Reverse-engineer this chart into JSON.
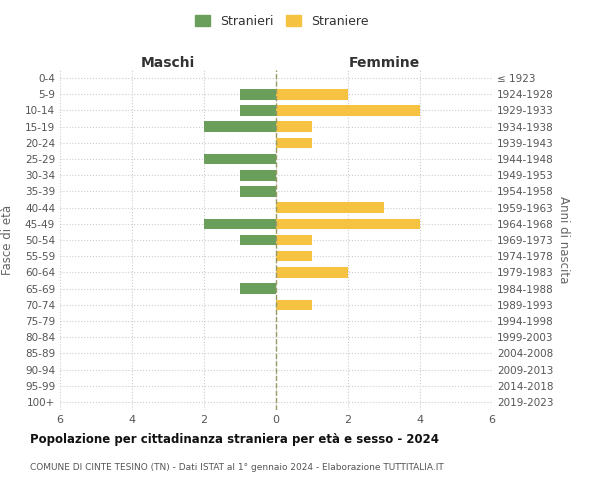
{
  "age_groups": [
    "0-4",
    "5-9",
    "10-14",
    "15-19",
    "20-24",
    "25-29",
    "30-34",
    "35-39",
    "40-44",
    "45-49",
    "50-54",
    "55-59",
    "60-64",
    "65-69",
    "70-74",
    "75-79",
    "80-84",
    "85-89",
    "90-94",
    "95-99",
    "100+"
  ],
  "birth_years": [
    "2019-2023",
    "2014-2018",
    "2009-2013",
    "2004-2008",
    "1999-2003",
    "1994-1998",
    "1989-1993",
    "1984-1988",
    "1979-1983",
    "1974-1978",
    "1969-1973",
    "1964-1968",
    "1959-1963",
    "1954-1958",
    "1949-1953",
    "1944-1948",
    "1939-1943",
    "1934-1938",
    "1929-1933",
    "1924-1928",
    "≤ 1923"
  ],
  "maschi": [
    0,
    1,
    1,
    2,
    0,
    2,
    1,
    1,
    0,
    2,
    1,
    0,
    0,
    1,
    0,
    0,
    0,
    0,
    0,
    0,
    0
  ],
  "femmine": [
    0,
    2,
    4,
    1,
    1,
    0,
    0,
    0,
    3,
    4,
    1,
    1,
    2,
    0,
    1,
    0,
    0,
    0,
    0,
    0,
    0
  ],
  "maschi_color": "#6a9e5b",
  "femmine_color": "#f5c242",
  "title": "Popolazione per cittadinanza straniera per età e sesso - 2024",
  "subtitle": "COMUNE DI CINTE TESINO (TN) - Dati ISTAT al 1° gennaio 2024 - Elaborazione TUTTITALIA.IT",
  "xlabel_left": "Maschi",
  "xlabel_right": "Femmine",
  "ylabel_left": "Fasce di età",
  "ylabel_right": "Anni di nascita",
  "legend_maschi": "Stranieri",
  "legend_femmine": "Straniere",
  "xlim": 6,
  "background_color": "#ffffff",
  "grid_color": "#cccccc"
}
